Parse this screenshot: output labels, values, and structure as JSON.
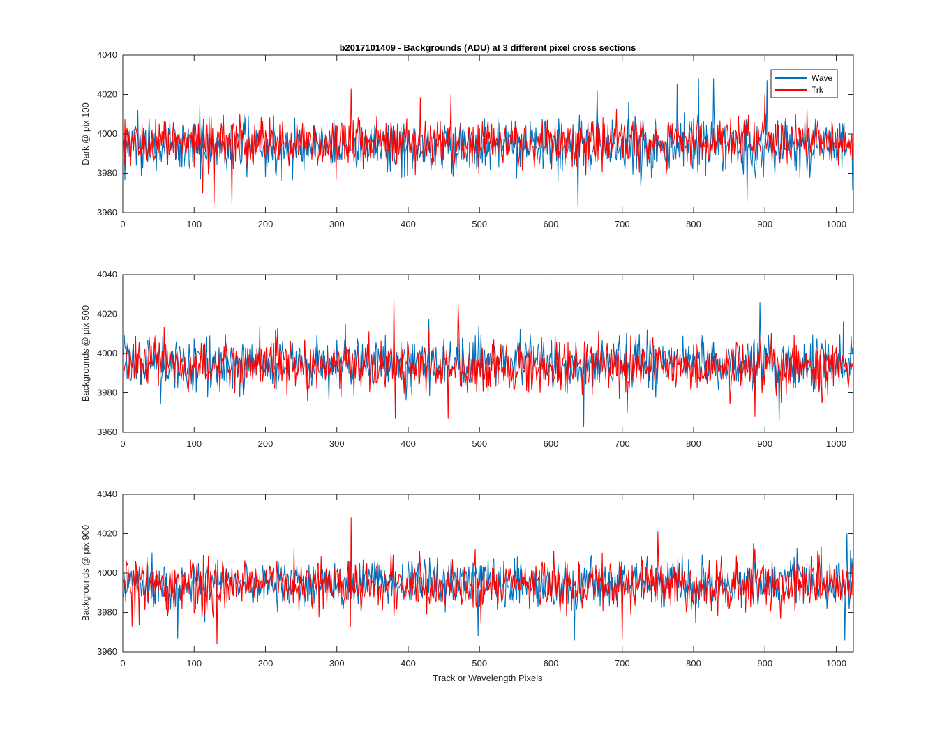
{
  "figure": {
    "title": "b2017101409 - Backgrounds (ADU) at 3 different pixel cross sections",
    "xlabel": "Track or Wavelength Pixels"
  },
  "colors": {
    "wave": "#0072BD",
    "trk": "#FF0000",
    "axes": "#262626"
  },
  "legend": {
    "placement": "top-right of first panel",
    "entries": [
      "Wave",
      "Trk"
    ]
  },
  "chart_data": [
    {
      "type": "line",
      "title": "b2017101409 - Backgrounds (ADU) at 3 different pixel cross sections",
      "xlabel": "",
      "ylabel": "Dark @ pix 100",
      "xlim": [
        0,
        1024
      ],
      "ylim": [
        3960,
        4040
      ],
      "xticks": [
        0,
        100,
        200,
        300,
        400,
        500,
        600,
        700,
        800,
        900,
        1000
      ],
      "yticks": [
        3960,
        3980,
        4000,
        4020,
        4040
      ],
      "x": "pixel index 1..1024",
      "series": [
        {
          "name": "Wave",
          "color": "#0072BD",
          "mean": 3994,
          "min": 3963,
          "max": 4028,
          "peaks": [
            [
              638,
              3963
            ],
            [
              665,
              4022
            ],
            [
              777,
              4025
            ],
            [
              807,
              4028
            ],
            [
              828,
              4028
            ],
            [
              875,
              3966
            ],
            [
              903,
              4027
            ]
          ]
        },
        {
          "name": "Trk",
          "color": "#FF0000",
          "mean": 3996,
          "min": 3965,
          "max": 4023,
          "peaks": [
            [
              112,
              3970
            ],
            [
              128,
              3965
            ],
            [
              153,
              3965
            ],
            [
              320,
              4023
            ],
            [
              460,
              4020
            ],
            [
              900,
              4020
            ]
          ]
        }
      ]
    },
    {
      "type": "line",
      "title": "",
      "xlabel": "",
      "ylabel": "Backgrounds @ pix 500",
      "xlim": [
        0,
        1024
      ],
      "ylim": [
        3960,
        4040
      ],
      "xticks": [
        0,
        100,
        200,
        300,
        400,
        500,
        600,
        700,
        800,
        900,
        1000
      ],
      "yticks": [
        3960,
        3980,
        4000,
        4020,
        4040
      ],
      "x": "pixel index 1..1024",
      "series": [
        {
          "name": "Wave",
          "color": "#0072BD",
          "mean": 3995,
          "min": 3963,
          "max": 4026,
          "peaks": [
            [
              646,
              3963
            ],
            [
              893,
              4026
            ],
            [
              920,
              3966
            ]
          ]
        },
        {
          "name": "Trk",
          "color": "#FF0000",
          "mean": 3994,
          "min": 3967,
          "max": 4027,
          "peaks": [
            [
              380,
              4027
            ],
            [
              382,
              3967
            ],
            [
              470,
              4025
            ],
            [
              456,
              3967
            ],
            [
              707,
              3970
            ],
            [
              886,
              3968
            ]
          ]
        }
      ]
    },
    {
      "type": "line",
      "title": "",
      "xlabel": "Track or Wavelength Pixels",
      "ylabel": "Backgrounds @ pix 900",
      "xlim": [
        0,
        1024
      ],
      "ylim": [
        3960,
        4040
      ],
      "xticks": [
        0,
        100,
        200,
        300,
        400,
        500,
        600,
        700,
        800,
        900,
        1000
      ],
      "yticks": [
        3960,
        3980,
        4000,
        4020,
        4040
      ],
      "x": "pixel index 1..1024",
      "series": [
        {
          "name": "Wave",
          "color": "#0072BD",
          "mean": 3995,
          "min": 3966,
          "max": 4021,
          "peaks": [
            [
              77,
              3967
            ],
            [
              498,
              3968
            ],
            [
              633,
              3966
            ],
            [
              1012,
              3966
            ],
            [
              1015,
              4020
            ]
          ]
        },
        {
          "name": "Trk",
          "color": "#FF0000",
          "mean": 3994,
          "min": 3964,
          "max": 4028,
          "peaks": [
            [
              132,
              3964
            ],
            [
              320,
              4028
            ],
            [
              700,
              3967
            ],
            [
              750,
              4021
            ]
          ]
        }
      ]
    }
  ]
}
